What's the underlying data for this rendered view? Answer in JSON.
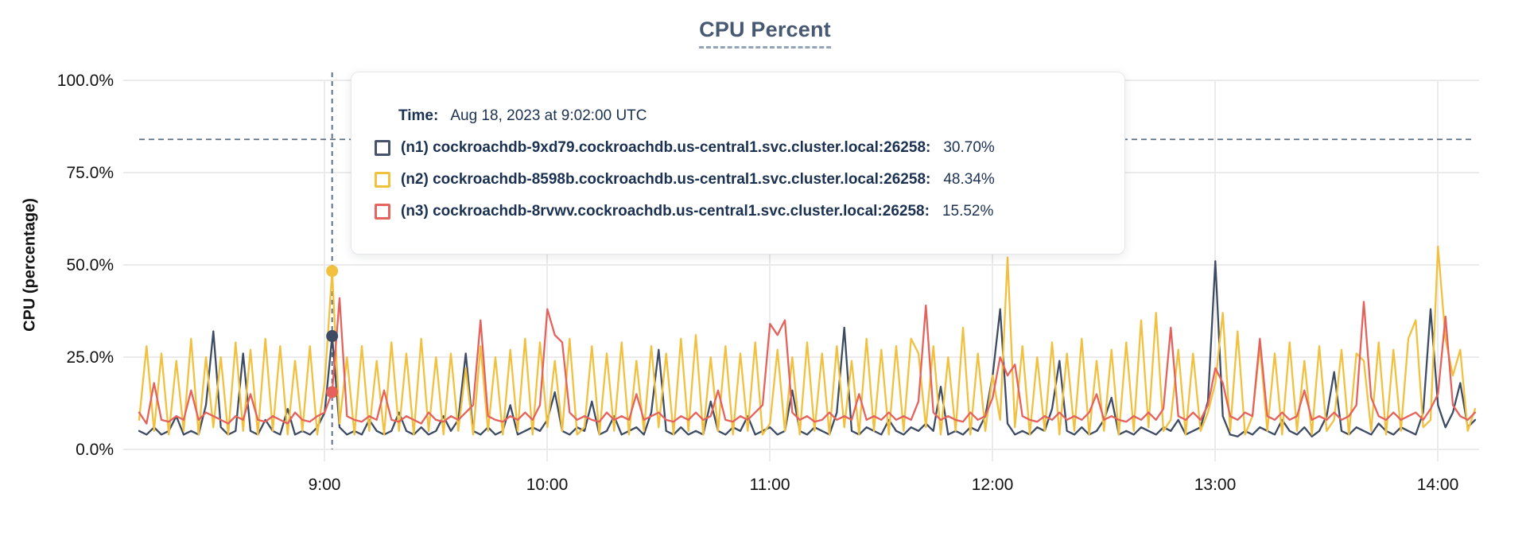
{
  "title": "CPU Percent",
  "y_axis": {
    "label": "CPU (percentage)",
    "ticks": [
      {
        "label": "100.0%",
        "value": 100
      },
      {
        "label": "75.0%",
        "value": 75
      },
      {
        "label": "50.0%",
        "value": 50
      },
      {
        "label": "25.0%",
        "value": 25
      },
      {
        "label": "0.0%",
        "value": 0
      }
    ]
  },
  "x_axis": {
    "ticks": [
      {
        "label": "9:00",
        "hour": 9
      },
      {
        "label": "10:00",
        "hour": 10
      },
      {
        "label": "11:00",
        "hour": 11
      },
      {
        "label": "12:00",
        "hour": 12
      },
      {
        "label": "13:00",
        "hour": 13
      },
      {
        "label": "14:00",
        "hour": 14
      }
    ]
  },
  "tooltip": {
    "time_label": "Time:",
    "time_value": "Aug 18, 2023 at 9:02:00 UTC",
    "rows": [
      {
        "label": "(n1) cockroachdb-9xd79.cockroachdb.us-central1.svc.cluster.local:26258:",
        "value": "30.70%",
        "color": "#47536a"
      },
      {
        "label": "(n2) cockroachdb-8598b.cockroachdb.us-central1.svc.cluster.local:26258:",
        "value": "48.34%",
        "color": "#efc13c"
      },
      {
        "label": "(n3) cockroachdb-8rvwv.cockroachdb.us-central1.svc.cluster.local:26258:",
        "value": "15.52%",
        "color": "#e6655f"
      }
    ]
  },
  "colors": {
    "title": "#475872",
    "title_dash": "#95a3b8",
    "gridline": "#ebebeb",
    "axis_text": "#111111",
    "dashed_guide": "#5d7186",
    "tooltip_text": "#1b3152",
    "series_n1": "#3e4c63",
    "series_n2": "#f1c03f",
    "series_n3": "#e5625c"
  },
  "chart_data": {
    "type": "line",
    "title": "CPU Percent",
    "xlabel": "",
    "ylabel": "CPU (percentage)",
    "ylim": [
      0,
      100
    ],
    "grid": true,
    "x_start_minutes": 490,
    "x_step_minutes": 2,
    "x_end_minutes": 850,
    "threshold_line_percent": 84,
    "hover": {
      "index": 26,
      "time_minutes": 542,
      "label": "9:02"
    },
    "series": [
      {
        "name": "(n1) cockroachdb-9xd79.cockroachdb.us-central1.svc.cluster.local:26258",
        "color": "#3e4c63",
        "hover_value": 30.7,
        "values": [
          5,
          4,
          6,
          4,
          5,
          9,
          4,
          5,
          4,
          12,
          32,
          6,
          4,
          5,
          26,
          5,
          4,
          8,
          5,
          4,
          11,
          4,
          5,
          4,
          6,
          10,
          30.7,
          6,
          4,
          5,
          4,
          8,
          5,
          4,
          5,
          10,
          5,
          4,
          6,
          4,
          5,
          9,
          5,
          8,
          26,
          5,
          4,
          6,
          4,
          5,
          12,
          4,
          5,
          6,
          5,
          8,
          15.5,
          5,
          4,
          6,
          5,
          13,
          4,
          5,
          9,
          4,
          5,
          6,
          4,
          10,
          27,
          5,
          4,
          6,
          4,
          5,
          4,
          13,
          5,
          4,
          6,
          5,
          9,
          4,
          5,
          6,
          4,
          5,
          16,
          5,
          4,
          6,
          5,
          4,
          10,
          33,
          5,
          4,
          6,
          5,
          4,
          8,
          5,
          4,
          6,
          5,
          7,
          5,
          17,
          4,
          5,
          4,
          6,
          5,
          9,
          20,
          38,
          7,
          4,
          5,
          4,
          6,
          5,
          11,
          24,
          5,
          4,
          6,
          4,
          5,
          8,
          14,
          4,
          5,
          4,
          6,
          5,
          4,
          6,
          5,
          8,
          4,
          5,
          6,
          13,
          51,
          9,
          4,
          3.5,
          5,
          4,
          6,
          5,
          4,
          8,
          5,
          4,
          6,
          3.5,
          5,
          9,
          21,
          5,
          4,
          6,
          5,
          4,
          7,
          5,
          4,
          6,
          5,
          4,
          10,
          38,
          12,
          6,
          10,
          18,
          6,
          8
        ]
      },
      {
        "name": "(n2) cockroachdb-8598b.cockroachdb.us-central1.svc.cluster.local:26258",
        "color": "#f1c03f",
        "hover_value": 48.34,
        "values": [
          8,
          28,
          5,
          26,
          4,
          24,
          5,
          30,
          4,
          25,
          6,
          25,
          4,
          29,
          5,
          27,
          4,
          30,
          5,
          28,
          4,
          24,
          5,
          28,
          4,
          18,
          48.34,
          7,
          25,
          4,
          28,
          5,
          24,
          4,
          29,
          5,
          26,
          4,
          30,
          5,
          25,
          4,
          26,
          5,
          22,
          4,
          28,
          5,
          25,
          4,
          27,
          5,
          30,
          4,
          29,
          6,
          24,
          5,
          30,
          4,
          6,
          28,
          4,
          26,
          5,
          29,
          4,
          24,
          5,
          28,
          6,
          26,
          4,
          30,
          5,
          31,
          4,
          25,
          5,
          28,
          4,
          26,
          5,
          29,
          4,
          7,
          27,
          5,
          25,
          4,
          29,
          5,
          26,
          4,
          28,
          6,
          24,
          4,
          30,
          5,
          27,
          4,
          28,
          5,
          30,
          26,
          6,
          28,
          4,
          25,
          5,
          33,
          4,
          26,
          5,
          20,
          8,
          52,
          6,
          28,
          4,
          25,
          5,
          29,
          4,
          26,
          5,
          30,
          4,
          24,
          5,
          27,
          4,
          29,
          5,
          35,
          6,
          37,
          5,
          8,
          27,
          4,
          26,
          5,
          10,
          18,
          37,
          5,
          32,
          4,
          9,
          28,
          5,
          26,
          4,
          29,
          5,
          24,
          4,
          28,
          5,
          8,
          27,
          4,
          26,
          24,
          5,
          29,
          4,
          27,
          5,
          30,
          35,
          6,
          8,
          55,
          30,
          20,
          27,
          5,
          11
        ]
      },
      {
        "name": "(n3) cockroachdb-8rvwv.cockroachdb.us-central1.svc.cluster.local:26258",
        "color": "#e5625c",
        "hover_value": 15.52,
        "values": [
          10,
          7,
          18,
          8,
          7.5,
          9,
          8,
          16,
          8,
          10,
          9,
          8,
          7,
          9,
          8,
          15,
          8,
          7.5,
          9,
          8,
          7,
          10,
          8,
          7.5,
          9,
          10,
          15.52,
          41,
          9,
          8,
          7.5,
          9,
          8,
          16,
          8,
          7.5,
          9,
          8,
          7,
          10,
          8,
          7.5,
          9,
          8,
          10,
          12,
          35,
          9,
          8,
          7.5,
          9,
          8,
          10,
          8,
          12,
          38,
          31,
          29,
          10,
          8,
          9,
          8,
          7.5,
          10,
          8,
          9,
          8,
          15,
          8,
          9,
          10,
          8,
          7.5,
          9,
          8,
          10,
          8,
          9,
          16,
          8,
          7.5,
          9,
          8,
          10,
          12,
          34,
          31,
          35,
          10,
          8,
          9,
          7.5,
          8,
          10,
          8,
          9,
          8,
          15,
          8,
          9,
          8,
          10,
          8,
          9,
          8,
          13,
          39,
          10,
          8,
          9,
          8,
          7.5,
          10,
          8,
          9,
          14,
          25,
          20,
          23,
          9,
          8,
          7.5,
          9,
          8,
          10,
          8,
          9,
          8,
          10,
          15,
          8,
          9,
          8,
          7.5,
          9,
          8,
          10,
          8,
          11,
          33,
          9,
          8,
          10,
          8,
          12,
          22,
          18,
          9,
          8,
          10,
          9,
          30,
          9,
          8,
          10,
          8,
          9,
          16,
          8,
          9,
          8,
          10,
          8,
          9,
          12,
          40,
          14,
          9,
          8,
          10,
          8,
          9,
          10,
          8,
          11,
          15,
          36,
          12,
          9,
          8,
          10
        ]
      }
    ]
  }
}
